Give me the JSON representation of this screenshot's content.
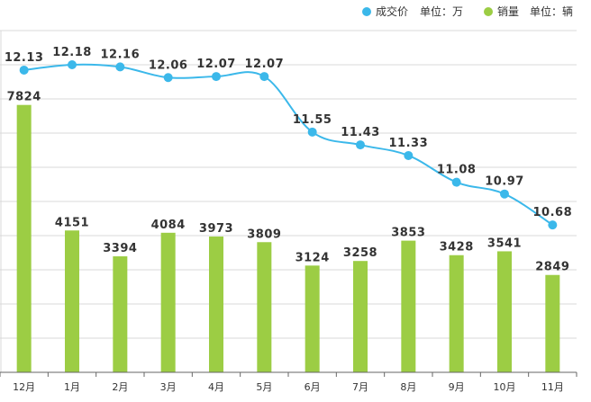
{
  "chart_data": {
    "type": "bar+line",
    "categories": [
      "12月",
      "1月",
      "2月",
      "3月",
      "4月",
      "5月",
      "6月",
      "7月",
      "8月",
      "9月",
      "10月",
      "11月"
    ],
    "series": [
      {
        "name": "成交价",
        "type": "line",
        "unit_label": "单位：万",
        "color": "#3bb8ea",
        "values": [
          12.13,
          12.18,
          12.16,
          12.06,
          12.07,
          12.07,
          11.55,
          11.43,
          11.33,
          11.08,
          10.97,
          10.68
        ],
        "labels": [
          "12.13",
          "12.18",
          "12.16",
          "12.06",
          "12.07",
          "12.07",
          "11.55",
          "11.43",
          "11.33",
          "11.08",
          "10.97",
          "10.68"
        ]
      },
      {
        "name": "销量",
        "type": "bar",
        "unit_label": "单位：辆",
        "color": "#9ccd44",
        "values": [
          7824,
          4151,
          3394,
          4084,
          3973,
          3809,
          3124,
          3258,
          3853,
          3428,
          3541,
          2849
        ],
        "labels": [
          "7824",
          "4151",
          "3394",
          "4084",
          "3973",
          "3809",
          "3124",
          "3258",
          "3853",
          "3428",
          "3541",
          "2849"
        ]
      }
    ],
    "bar_axis": {
      "min": 0,
      "max": 10000
    },
    "line_axis": {
      "min": 9.3,
      "max": 12.5
    },
    "grid": true,
    "legend_position": "top-right"
  }
}
